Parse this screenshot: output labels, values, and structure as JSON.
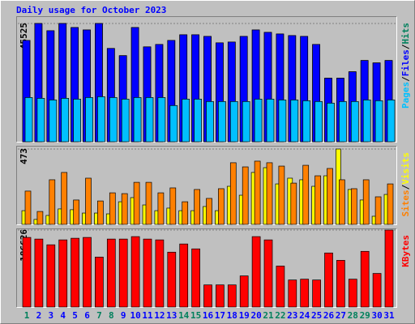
{
  "chart_data": [
    {
      "type": "bar",
      "title": "Daily usage for October 2023",
      "ylim": [
        0,
        45525
      ],
      "yticks": [
        45525
      ],
      "legend_separator": "/",
      "series": [
        {
          "name": "Hits",
          "color": "#00805c",
          "values": [
            39020,
            45525,
            42740,
            45525,
            43980,
            43050,
            45525,
            35925,
            33140,
            43980,
            36540,
            37470,
            39020,
            41190,
            41190,
            40570,
            38090,
            38400,
            40570,
            43050,
            42120,
            41500,
            40880,
            40570,
            37470,
            24470,
            24470,
            26940,
            31280,
            30350,
            31280
          ]
        },
        {
          "name": "Files",
          "color": "#0000ff",
          "values": [
            39020,
            45525,
            42740,
            45525,
            43980,
            43050,
            45525,
            35925,
            33140,
            43980,
            36540,
            37470,
            39020,
            41190,
            41190,
            40570,
            38090,
            38400,
            40570,
            43050,
            42120,
            41500,
            40880,
            40570,
            37470,
            24470,
            24470,
            26940,
            31280,
            30350,
            31280
          ]
        },
        {
          "name": "Pages",
          "color": "#00c0ff",
          "values": [
            17030,
            16720,
            16100,
            16720,
            16410,
            17030,
            17340,
            17030,
            16410,
            17030,
            17030,
            17030,
            13940,
            16410,
            16410,
            15490,
            15490,
            15490,
            15490,
            16410,
            16410,
            16100,
            16100,
            15800,
            15490,
            14870,
            15490,
            15490,
            16100,
            15800,
            16100
          ]
        }
      ]
    },
    {
      "type": "bar",
      "ylim": [
        0,
        473
      ],
      "yticks": [
        473
      ],
      "legend_separator": "/",
      "series": [
        {
          "name": "Visits",
          "color": "#ffff00",
          "values": [
            86,
            31,
            56,
            97,
            92,
            71,
            71,
            66,
            142,
            168,
            122,
            86,
            102,
            86,
            86,
            112,
            86,
            239,
            183,
            326,
            356,
            254,
            290,
            280,
            239,
            305,
            473,
            219,
            153,
            51,
            188
          ]
        },
        {
          "name": "Sites",
          "color": "#ff8000",
          "values": [
            209,
            81,
            280,
            326,
            153,
            290,
            147,
            198,
            193,
            264,
            264,
            198,
            229,
            142,
            219,
            163,
            224,
            387,
            361,
            397,
            387,
            366,
            259,
            371,
            305,
            351,
            280,
            224,
            280,
            173,
            254
          ]
        }
      ]
    },
    {
      "type": "bar",
      "ylim": [
        0,
        186626
      ],
      "yticks": [
        186626
      ],
      "series": [
        {
          "name": "KBytes",
          "color": "#ff0000",
          "values": [
            168730,
            164760,
            150860,
            162770,
            166740,
            168730,
            121090,
            164760,
            164760,
            170710,
            164760,
            162770,
            133000,
            152850,
            140940,
            53600,
            53600,
            53600,
            75430,
            170710,
            162770,
            99250,
            65500,
            67490,
            65500,
            131010,
            113150,
            67490,
            134980,
            81390,
            186626
          ]
        }
      ],
      "categories": [
        "1",
        "2",
        "3",
        "4",
        "5",
        "6",
        "7",
        "8",
        "9",
        "10",
        "11",
        "12",
        "13",
        "14",
        "15",
        "16",
        "17",
        "18",
        "19",
        "20",
        "21",
        "22",
        "23",
        "24",
        "25",
        "26",
        "27",
        "28",
        "29",
        "30",
        "31"
      ],
      "category_colors": [
        "#00805c",
        "#0000ff",
        "#0000ff",
        "#0000ff",
        "#0000ff",
        "#0000ff",
        "#00805c",
        "#00805c",
        "#0000ff",
        "#0000ff",
        "#0000ff",
        "#0000ff",
        "#0000ff",
        "#00805c",
        "#00805c",
        "#0000ff",
        "#0000ff",
        "#0000ff",
        "#0000ff",
        "#0000ff",
        "#00805c",
        "#00805c",
        "#0000ff",
        "#0000ff",
        "#0000ff",
        "#0000ff",
        "#0000ff",
        "#00805c",
        "#00805c",
        "#0000ff",
        "#0000ff"
      ]
    }
  ]
}
